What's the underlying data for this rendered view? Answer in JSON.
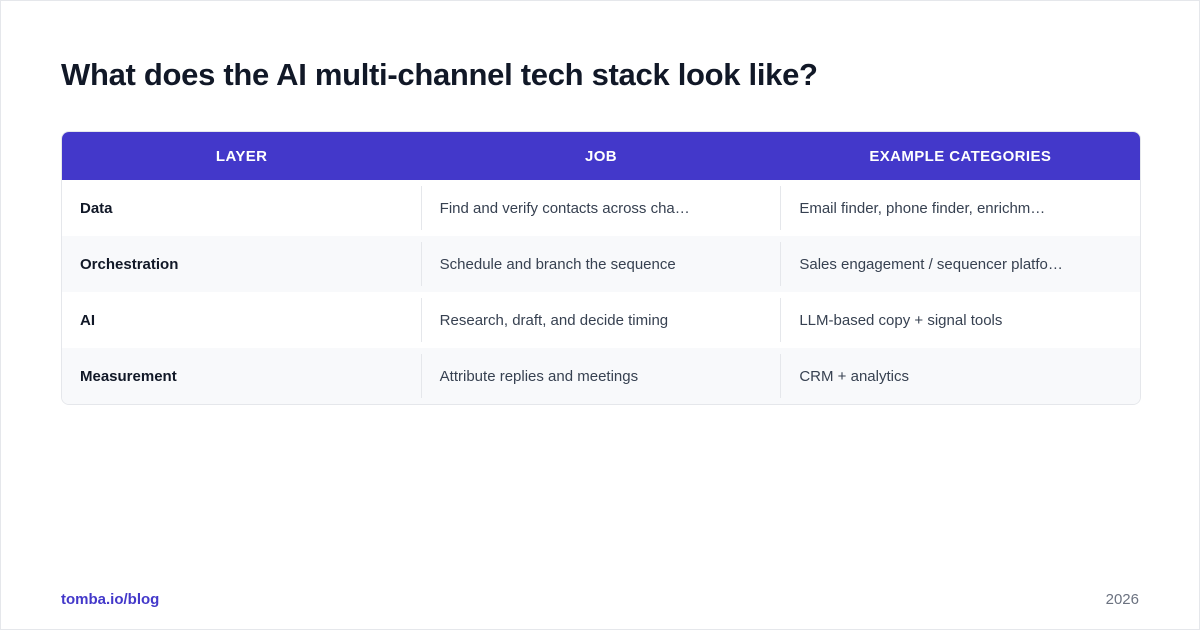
{
  "title": "What does the AI multi-channel tech stack look like?",
  "table": {
    "headers": [
      "LAYER",
      "JOB",
      "EXAMPLE CATEGORIES"
    ],
    "rows": [
      {
        "layer": "Data",
        "job": "Find and verify contacts across cha…",
        "examples": "Email finder, phone finder, enrichm…"
      },
      {
        "layer": "Orchestration",
        "job": "Schedule and branch the sequence",
        "examples": "Sales engagement / sequencer platfo…"
      },
      {
        "layer": "AI",
        "job": "Research, draft, and decide timing",
        "examples": "LLM-based copy + signal tools"
      },
      {
        "layer": "Measurement",
        "job": "Attribute replies and meetings",
        "examples": "CRM + analytics"
      }
    ]
  },
  "footer": {
    "source": "tomba.io/blog",
    "year": "2026"
  },
  "colors": {
    "header_bg": "#4338ca",
    "accent": "#4338ca"
  }
}
